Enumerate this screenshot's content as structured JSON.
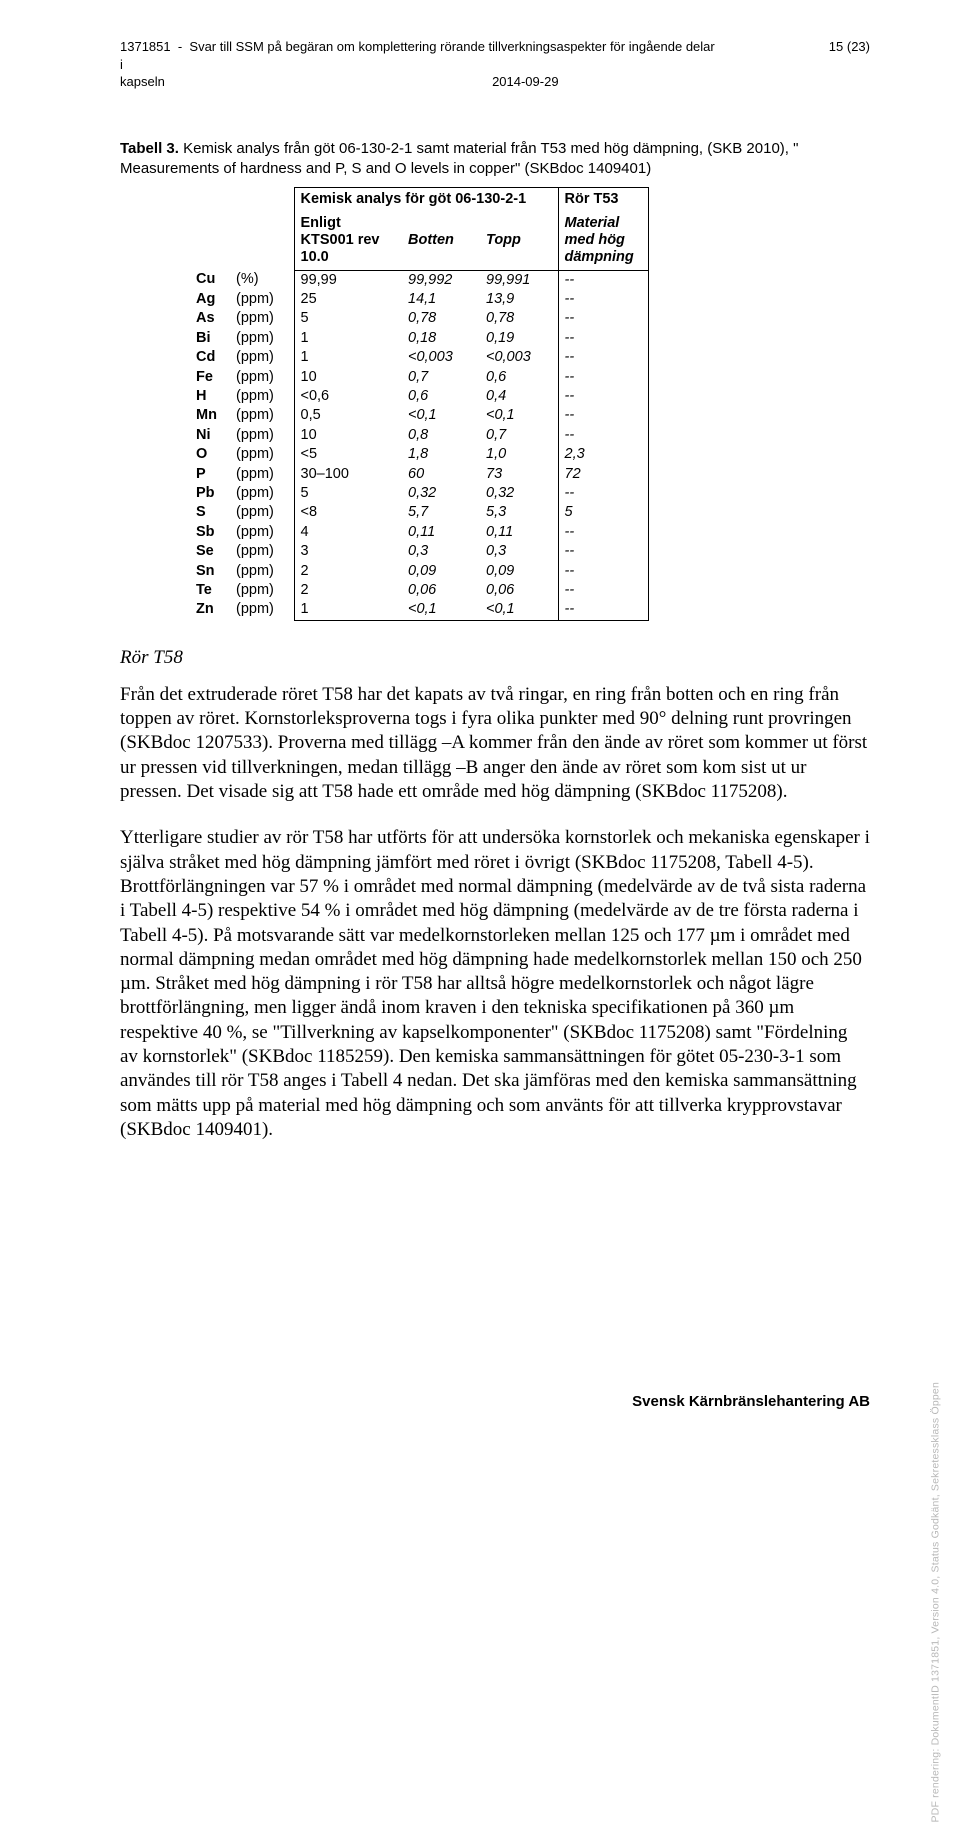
{
  "header": {
    "doc_id": "1371851",
    "title_line1": "Svar till SSM på begäran om komplettering rörande tillverkningsaspekter för ingående delar i",
    "title_line2": "kapseln",
    "date": "2014-09-29",
    "page": "15 (23)"
  },
  "table": {
    "caption_bold": "Tabell 3.",
    "caption_rest": " Kemisk analys från göt 06-130-2-1 samt material från T53 med hög dämpning, (SKB 2010), \" Measurements of hardness and P, S and O levels in copper\" (SKBdoc 1409401)",
    "head_main_left": "Kemisk analys för göt 06-130-2-1",
    "head_main_right": "Rör T53",
    "head_spec": "Enligt KTS001 rev 10.0",
    "head_botten": "Botten",
    "head_topp": "Topp",
    "head_material": "Material med hög dämpning",
    "rows": [
      {
        "el": "Cu",
        "unit": "(%)",
        "spec": "99,99",
        "bot": "99,992",
        "top": "99,991",
        "mat": "--"
      },
      {
        "el": "Ag",
        "unit": "(ppm)",
        "spec": "25",
        "bot": "14,1",
        "top": "13,9",
        "mat": "--"
      },
      {
        "el": "As",
        "unit": "(ppm)",
        "spec": "5",
        "bot": "0,78",
        "top": "0,78",
        "mat": "--"
      },
      {
        "el": "Bi",
        "unit": "(ppm)",
        "spec": "1",
        "bot": "0,18",
        "top": "0,19",
        "mat": "--"
      },
      {
        "el": "Cd",
        "unit": "(ppm)",
        "spec": "1",
        "bot": "<0,003",
        "top": "<0,003",
        "mat": "--"
      },
      {
        "el": "Fe",
        "unit": "(ppm)",
        "spec": "10",
        "bot": "0,7",
        "top": "0,6",
        "mat": "--"
      },
      {
        "el": "H",
        "unit": "(ppm)",
        "spec": "<0,6",
        "bot": "0,6",
        "top": "0,4",
        "mat": "--"
      },
      {
        "el": "Mn",
        "unit": "(ppm)",
        "spec": "0,5",
        "bot": "<0,1",
        "top": "<0,1",
        "mat": "--"
      },
      {
        "el": "Ni",
        "unit": "(ppm)",
        "spec": "10",
        "bot": "0,8",
        "top": "0,7",
        "mat": "--"
      },
      {
        "el": "O",
        "unit": "(ppm)",
        "spec": "<5",
        "bot": "1,8",
        "top": "1,0",
        "mat": "2,3"
      },
      {
        "el": "P",
        "unit": "(ppm)",
        "spec": "30–100",
        "bot": "60",
        "top": "73",
        "mat": "72"
      },
      {
        "el": "Pb",
        "unit": "(ppm)",
        "spec": "5",
        "bot": "0,32",
        "top": "0,32",
        "mat": "--"
      },
      {
        "el": "S",
        "unit": "(ppm)",
        "spec": "<8",
        "bot": "5,7",
        "top": "5,3",
        "mat": "5"
      },
      {
        "el": "Sb",
        "unit": "(ppm)",
        "spec": "4",
        "bot": "0,11",
        "top": "0,11",
        "mat": "--"
      },
      {
        "el": "Se",
        "unit": "(ppm)",
        "spec": "3",
        "bot": "0,3",
        "top": "0,3",
        "mat": "--"
      },
      {
        "el": "Sn",
        "unit": "(ppm)",
        "spec": "2",
        "bot": "0,09",
        "top": "0,09",
        "mat": "--"
      },
      {
        "el": "Te",
        "unit": "(ppm)",
        "spec": "2",
        "bot": "0,06",
        "top": "0,06",
        "mat": "--"
      },
      {
        "el": "Zn",
        "unit": "(ppm)",
        "spec": "1",
        "bot": "<0,1",
        "top": "<0,1",
        "mat": "--"
      }
    ]
  },
  "subheading": "Rör T58",
  "para1": "Från det extruderade röret T58 har det kapats av två ringar, en ring från botten och en ring från toppen av röret. Kornstorleksproverna togs i fyra olika punkter med 90° delning runt provringen (SKBdoc 1207533). Proverna med tillägg –A kommer från den ände av röret som kommer ut först ur pressen vid tillverkningen, medan tillägg –B anger den ände av röret som kom sist ut ur pressen. Det visade sig att T58 hade ett område med hög dämpning (SKBdoc 1175208).",
  "para2": "Ytterligare studier av rör T58 har utförts för att undersöka kornstorlek och mekaniska egenskaper i själva stråket med hög dämpning jämfört med röret i övrigt (SKBdoc 1175208, Tabell 4-5). Brottförlängningen var 57 % i området med normal dämpning (medelvärde av de två sista raderna i Tabell 4-5) respektive 54 % i området med hög dämpning (medelvärde av de tre första raderna i Tabell 4-5). På motsvarande sätt var medelkornstorleken mellan 125 och 177 µm i området med normal dämpning medan området med hög dämpning hade medelkornstorlek mellan 150 och 250 µm. Stråket med hög dämpning i rör T58 har alltså högre medelkornstorlek och något lägre brottförlängning, men ligger ändå inom kraven i den tekniska specifikationen på 360 µm respektive 40 %, se \"Tillverkning av kapselkomponenter\" (SKBdoc 1175208) samt \"Fördelning av kornstorlek\" (SKBdoc 1185259). Den kemiska sammansättningen för götet 05-230-3-1 som användes till rör T58 anges i Tabell 4 nedan. Det ska jämföras med den kemiska sammansättning som mätts upp på material med hög dämpning och som använts för att tillverka krypprovstavar (SKBdoc 1409401).",
  "footer": "Svensk Kärnbränslehantering AB",
  "side": "PDF rendering: DokumentID 1371851, Version 4.0, Status Godkänt, Sekretessklass Öppen"
}
